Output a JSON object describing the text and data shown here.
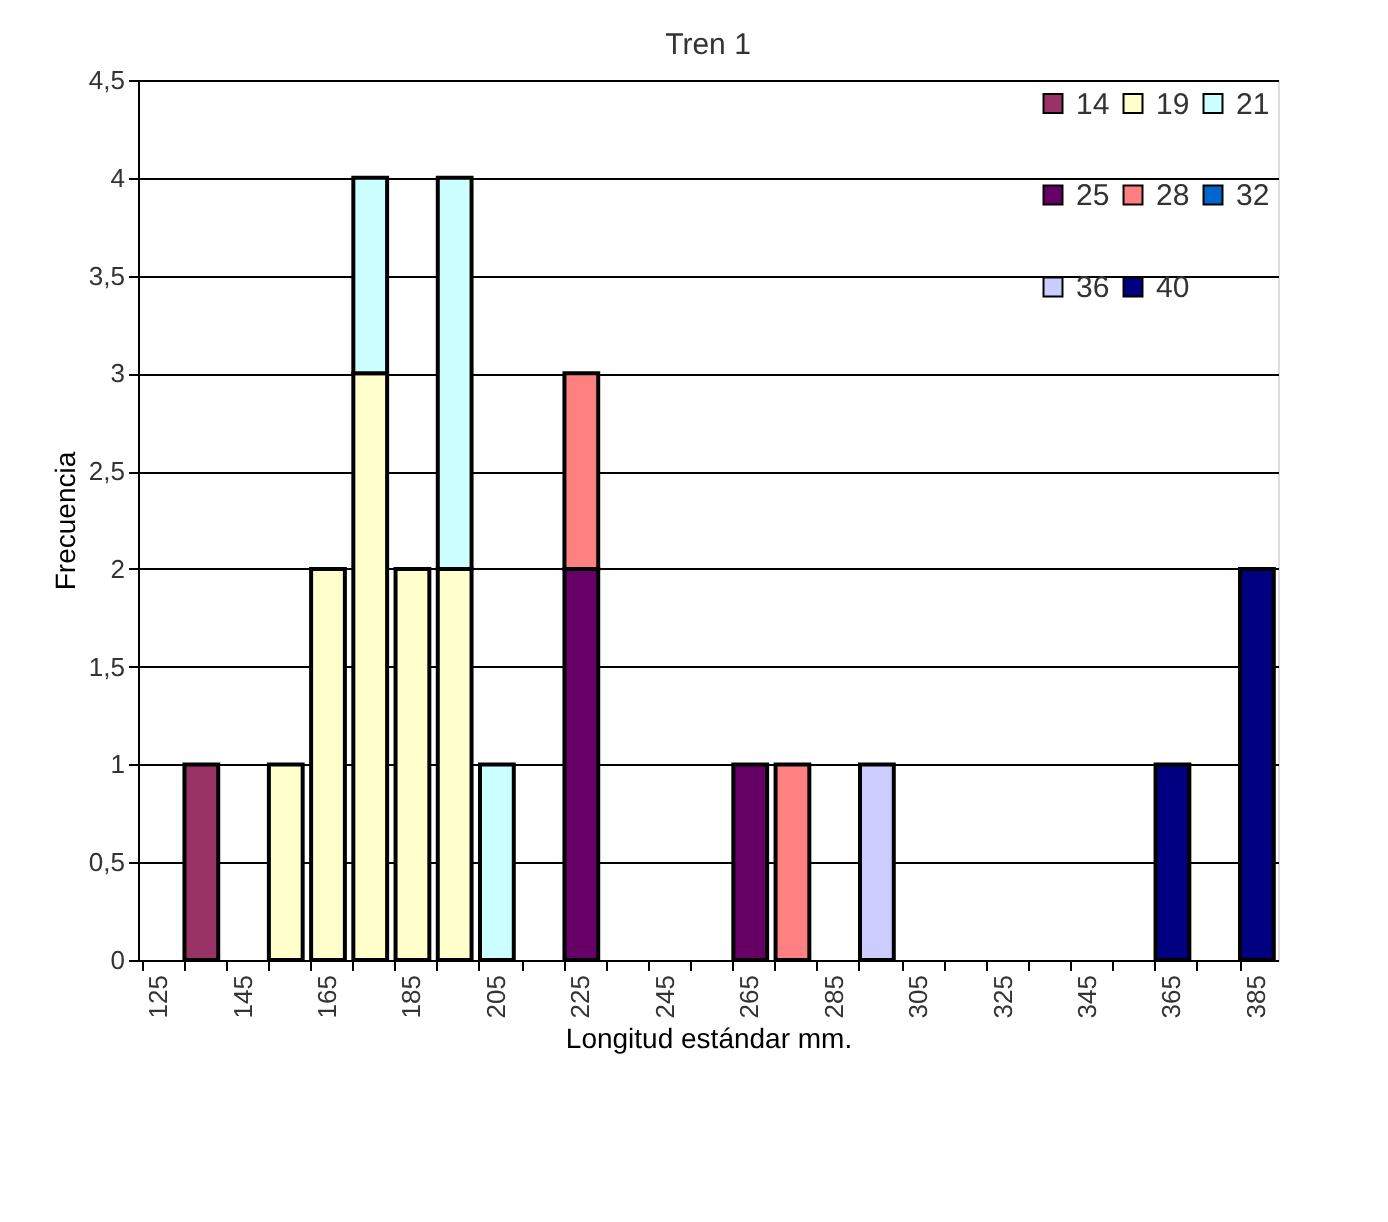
{
  "chart_data": {
    "type": "bar",
    "title": "Tren 1",
    "xlabel": "Longitud estándar mm.",
    "ylabel": "Frecuencia",
    "stacked": true,
    "grid": "y",
    "legend": "top right",
    "categories": [
      "125",
      null,
      "145",
      null,
      "165",
      null,
      "185",
      null,
      "205",
      null,
      "225",
      null,
      "245",
      null,
      "265",
      null,
      "285",
      null,
      "305",
      null,
      "325",
      null,
      "345",
      null,
      "365",
      null,
      "385"
    ],
    "ylim": [
      0,
      4.5
    ],
    "yticks": [
      0,
      {
        "value": 0.5,
        "label": "0,5"
      },
      1,
      {
        "value": 1.5,
        "label": "1,5"
      },
      2,
      {
        "value": 2.5,
        "label": "2,5"
      },
      3,
      {
        "value": 3.5,
        "label": "3,5"
      },
      4,
      {
        "value": 4.5,
        "label": "4,5"
      }
    ],
    "series": [
      {
        "name": "14",
        "color": "#993366",
        "values": [
          0,
          1,
          0,
          0,
          0,
          0,
          0,
          0,
          0,
          0,
          0,
          0,
          0,
          0,
          0,
          0,
          0,
          0,
          0,
          0,
          0,
          0,
          0,
          0,
          0,
          0,
          0
        ]
      },
      {
        "name": "19",
        "color": "#ffffcc",
        "values": [
          0,
          0,
          0,
          1,
          2,
          3,
          2,
          2,
          0,
          0,
          0,
          0,
          0,
          0,
          0,
          0,
          0,
          0,
          0,
          0,
          0,
          0,
          0,
          0,
          0,
          0,
          0
        ]
      },
      {
        "name": "21",
        "color": "#ccffff",
        "values": [
          0,
          0,
          0,
          0,
          0,
          1,
          0,
          2,
          1,
          0,
          0,
          0,
          0,
          0,
          0,
          0,
          0,
          0,
          0,
          0,
          0,
          0,
          0,
          0,
          0,
          0,
          0
        ]
      },
      {
        "name": "25",
        "color": "#660066",
        "values": [
          0,
          0,
          0,
          0,
          0,
          0,
          0,
          0,
          0,
          0,
          2,
          0,
          0,
          0,
          1,
          0,
          0,
          0,
          0,
          0,
          0,
          0,
          0,
          0,
          0,
          0,
          0
        ]
      },
      {
        "name": "28",
        "color": "#ff8080",
        "values": [
          0,
          0,
          0,
          0,
          0,
          0,
          0,
          0,
          0,
          0,
          1,
          0,
          0,
          0,
          0,
          1,
          0,
          0,
          0,
          0,
          0,
          0,
          0,
          0,
          0,
          0,
          0
        ]
      },
      {
        "name": "32",
        "color": "#0066cc",
        "values": [
          0,
          0,
          0,
          0,
          0,
          0,
          0,
          0,
          0,
          0,
          0,
          0,
          0,
          0,
          0,
          0,
          0,
          0,
          0,
          0,
          0,
          0,
          0,
          0,
          0,
          0,
          0
        ]
      },
      {
        "name": "36",
        "color": "#ccccff",
        "values": [
          0,
          0,
          0,
          0,
          0,
          0,
          0,
          0,
          0,
          0,
          0,
          0,
          0,
          0,
          0,
          0,
          0,
          1,
          0,
          0,
          0,
          0,
          0,
          0,
          0,
          0,
          0
        ]
      },
      {
        "name": "40",
        "color": "#000080",
        "values": [
          0,
          0,
          0,
          0,
          0,
          0,
          0,
          0,
          0,
          0,
          0,
          0,
          0,
          0,
          0,
          0,
          0,
          0,
          0,
          0,
          0,
          0,
          0,
          0,
          1,
          0,
          2
        ]
      }
    ]
  }
}
